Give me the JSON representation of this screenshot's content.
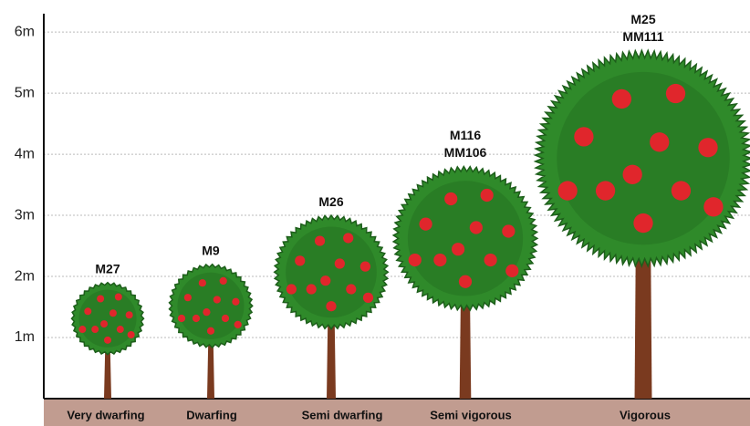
{
  "chart_data": {
    "type": "tree",
    "categories": [
      "Very dwarfing",
      "Dwarfing",
      "Semi dwarfing",
      "Semi vigorous",
      "Vigorous"
    ],
    "labels": [
      [
        "M27"
      ],
      [
        "M9"
      ],
      [
        "M26"
      ],
      [
        "M116",
        "MM106"
      ],
      [
        "M25",
        "MM111"
      ]
    ],
    "values": [
      1.9,
      2.2,
      3.0,
      3.8,
      5.7
    ],
    "ylim": [
      0,
      6.3
    ],
    "yticks": [
      {
        "value": 1,
        "label": "1m"
      },
      {
        "value": 2,
        "label": "2m"
      },
      {
        "value": 3,
        "label": "3m"
      },
      {
        "value": 4,
        "label": "4m"
      },
      {
        "value": 5,
        "label": "5m"
      },
      {
        "value": 6,
        "label": "6m"
      }
    ],
    "grid": true,
    "color": "#2f8a2a"
  }
}
